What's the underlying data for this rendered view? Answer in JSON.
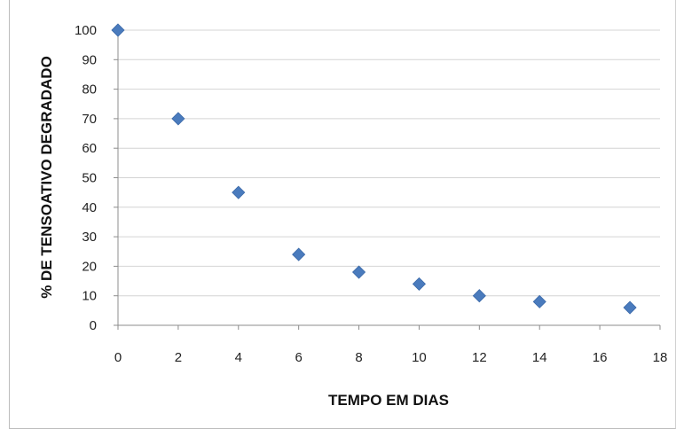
{
  "chart_data": {
    "type": "scatter",
    "title": "",
    "xlabel": "TEMPO EM DIAS",
    "ylabel": "% DE TENSOATIVO DEGRADADO",
    "xlim": [
      0,
      18
    ],
    "ylim": [
      0,
      100
    ],
    "x_ticks": [
      0,
      2,
      4,
      6,
      8,
      10,
      12,
      14,
      16,
      18
    ],
    "y_ticks": [
      0,
      10,
      20,
      30,
      40,
      50,
      60,
      70,
      80,
      90,
      100
    ],
    "grid": "horizontal",
    "legend": "none",
    "marker": "diamond",
    "color": "#4a7bbd",
    "series": [
      {
        "x": [
          0,
          2,
          4,
          6,
          8,
          10,
          12,
          14,
          17
        ],
        "y": [
          100,
          70,
          45,
          24,
          18,
          14,
          10,
          8,
          6
        ]
      }
    ]
  }
}
